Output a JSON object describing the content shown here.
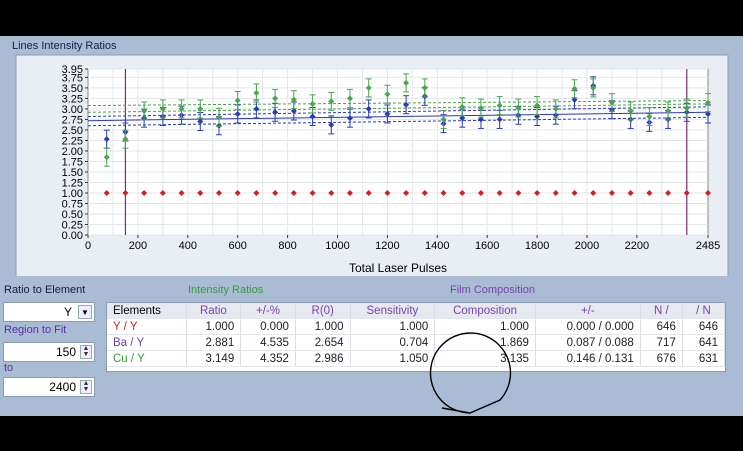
{
  "chart_data": {
    "type": "scatter",
    "title": "Lines Intensity Ratios",
    "xlabel": "Total Laser Pulses",
    "ylabel": "",
    "xlim": [
      0,
      2485
    ],
    "ylim": [
      0,
      3.95
    ],
    "x_ticks": [
      0,
      200,
      400,
      600,
      800,
      1000,
      1200,
      1400,
      1600,
      1800,
      2000,
      2200,
      2485
    ],
    "x_tick_labels": [
      "0",
      "200",
      "400",
      "600",
      "800",
      "1000",
      "1200",
      "1400",
      "1600",
      "1800",
      "2000",
      "2200",
      "2485"
    ],
    "y_ticks": [
      0,
      0.25,
      0.5,
      0.75,
      1.0,
      1.25,
      1.5,
      1.75,
      2.0,
      2.25,
      2.5,
      2.75,
      3.0,
      3.25,
      3.5,
      3.75,
      3.95
    ],
    "y_tick_labels": [
      "0.00",
      "0.25",
      "0.50",
      "0.75",
      "1.00",
      "1.25",
      "1.50",
      "1.75",
      "2.00",
      "2.25",
      "2.50",
      "2.75",
      "3.00",
      "3.25",
      "3.50",
      "3.75",
      "3.95"
    ],
    "grid": true,
    "vlines": [
      150,
      2400
    ],
    "series": [
      {
        "color": "#d12020",
        "x": [
          75,
          150,
          225,
          300,
          375,
          450,
          525,
          600,
          675,
          750,
          825,
          900,
          975,
          1050,
          1125,
          1200,
          1275,
          1350,
          1425,
          1500,
          1575,
          1650,
          1725,
          1800,
          1875,
          1950,
          2025,
          2100,
          2175,
          2250,
          2325,
          2400,
          2485
        ],
        "y": [
          1.0,
          1.0,
          1.0,
          1.0,
          1.0,
          1.0,
          1.0,
          1.0,
          1.0,
          1.0,
          1.0,
          1.0,
          1.0,
          1.0,
          1.0,
          1.0,
          1.0,
          1.0,
          1.0,
          1.0,
          1.0,
          1.0,
          1.0,
          1.0,
          1.0,
          1.0,
          1.0,
          1.0,
          1.0,
          1.0,
          1.0,
          1.0,
          1.0
        ]
      },
      {
        "color": "#2a3ab8",
        "x": [
          75,
          150,
          225,
          300,
          375,
          450,
          525,
          600,
          675,
          750,
          825,
          900,
          975,
          1050,
          1125,
          1200,
          1275,
          1350,
          1425,
          1500,
          1575,
          1650,
          1725,
          1800,
          1875,
          1950,
          2025,
          2100,
          2175,
          2250,
          2325,
          2400,
          2485
        ],
        "y": [
          2.28,
          2.45,
          2.78,
          2.82,
          2.85,
          2.7,
          2.6,
          2.88,
          3.0,
          2.92,
          2.95,
          2.82,
          2.62,
          2.78,
          3.0,
          2.88,
          3.1,
          3.3,
          2.65,
          2.78,
          2.75,
          2.75,
          2.85,
          2.82,
          2.85,
          3.22,
          3.55,
          2.98,
          2.75,
          2.68,
          2.75,
          2.92,
          2.88
        ]
      },
      {
        "color": "#4aa64a",
        "x": [
          75,
          150,
          225,
          300,
          375,
          450,
          525,
          600,
          675,
          750,
          825,
          900,
          975,
          1050,
          1125,
          1200,
          1275,
          1350,
          1425,
          1500,
          1575,
          1650,
          1725,
          1800,
          1875,
          1950,
          2025,
          2100,
          2175,
          2250,
          2325,
          2400,
          2485
        ],
        "y": [
          1.85,
          2.28,
          2.95,
          3.0,
          3.0,
          3.0,
          2.8,
          3.2,
          3.38,
          3.25,
          3.22,
          3.12,
          3.18,
          3.25,
          3.5,
          3.35,
          3.62,
          3.5,
          2.75,
          3.05,
          3.02,
          3.08,
          3.02,
          3.08,
          3.0,
          3.48,
          3.5,
          3.15,
          2.95,
          2.82,
          2.95,
          3.02,
          3.15
        ]
      }
    ],
    "fit_lines": [
      {
        "color": "#4aa64a",
        "dashed": true,
        "y0": 3.08,
        "y1": 3.2
      },
      {
        "color": "#4aa64a",
        "dashed": true,
        "y0": 2.92,
        "y1": 3.12
      },
      {
        "color": "#2a3ab8",
        "dashed": true,
        "y0": 2.82,
        "y1": 3.05
      },
      {
        "color": "#2a3ab8",
        "dashed": false,
        "y0": 2.72,
        "y1": 2.92
      },
      {
        "color": "#2a3ab8",
        "dashed": true,
        "y0": 2.6,
        "y1": 2.8
      }
    ]
  },
  "left_panel": {
    "ratio_label": "Ratio to Element",
    "ratio_value": "Y",
    "region_label": "Region to Fit",
    "region_from": "150",
    "to_label": "to",
    "region_to": "2400"
  },
  "table": {
    "group_intensity": "Intensity Ratios",
    "group_film": "Film Composition",
    "headers": [
      "Elements",
      "Ratio",
      "+/-%",
      "R(0)",
      "Sensitivity",
      "Composition",
      "+/-",
      "N /",
      "/ N"
    ],
    "rows": [
      {
        "element": "Y / Y",
        "color": "#d12020",
        "cells": [
          "1.000",
          "0.000",
          "1.000",
          "1.000",
          "1.000",
          "0.000 / 0.000",
          "646",
          "646"
        ]
      },
      {
        "element": "Ba / Y",
        "color": "#6a3fb5",
        "cells": [
          "2.881",
          "4.535",
          "2.654",
          "0.704",
          "1.869",
          "0.087 / 0.088",
          "717",
          "641"
        ]
      },
      {
        "element": "Cu / Y",
        "color": "#3a9a3a",
        "cells": [
          "3.149",
          "4.352",
          "2.986",
          "1.050",
          "3.135",
          "0.146 / 0.131",
          "676",
          "631"
        ]
      }
    ]
  }
}
